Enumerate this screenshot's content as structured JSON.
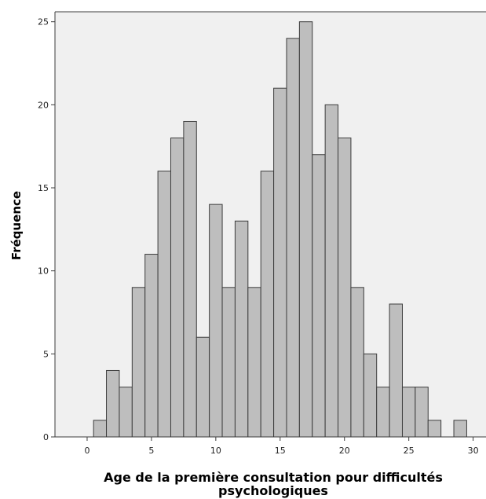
{
  "chart_data": {
    "type": "bar",
    "title": "",
    "xlabel_lines": [
      "Age de la première consultation pour difficultés",
      "psychologiques"
    ],
    "ylabel": "Fréquence",
    "xlim": [
      -2.5,
      31
    ],
    "ylim": [
      0,
      25.6
    ],
    "x_ticks": [
      0,
      5,
      10,
      15,
      20,
      25,
      30
    ],
    "y_ticks": [
      0,
      5,
      10,
      15,
      20,
      25
    ],
    "bin_width": 1,
    "bins": [
      {
        "x": 1,
        "value": 1
      },
      {
        "x": 2,
        "value": 4
      },
      {
        "x": 3,
        "value": 3
      },
      {
        "x": 4,
        "value": 9
      },
      {
        "x": 5,
        "value": 11
      },
      {
        "x": 6,
        "value": 16
      },
      {
        "x": 7,
        "value": 18
      },
      {
        "x": 8,
        "value": 19
      },
      {
        "x": 9,
        "value": 6
      },
      {
        "x": 10,
        "value": 14
      },
      {
        "x": 11,
        "value": 9
      },
      {
        "x": 12,
        "value": 13
      },
      {
        "x": 13,
        "value": 9
      },
      {
        "x": 14,
        "value": 16
      },
      {
        "x": 15,
        "value": 21
      },
      {
        "x": 16,
        "value": 24
      },
      {
        "x": 17,
        "value": 25
      },
      {
        "x": 18,
        "value": 17
      },
      {
        "x": 19,
        "value": 20
      },
      {
        "x": 20,
        "value": 18
      },
      {
        "x": 21,
        "value": 9
      },
      {
        "x": 22,
        "value": 5
      },
      {
        "x": 23,
        "value": 3
      },
      {
        "x": 24,
        "value": 8
      },
      {
        "x": 25,
        "value": 3
      },
      {
        "x": 26,
        "value": 3
      },
      {
        "x": 27,
        "value": 1
      },
      {
        "x": 29,
        "value": 1
      }
    ],
    "grid": false,
    "colors": {
      "plot_background": "#f0f0f0",
      "bar_fill": "#bebebe",
      "bar_stroke": "#3c3c3c",
      "axis": "#3c3c3c"
    }
  }
}
